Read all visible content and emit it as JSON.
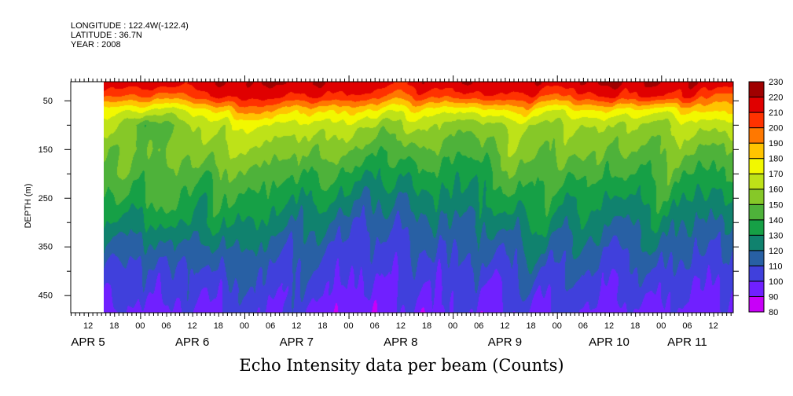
{
  "header": {
    "longitude": "LONGITUDE : 122.4W(-122.4)",
    "latitude": "LATITUDE : 36.7N",
    "year": "YEAR : 2008"
  },
  "chart_data": {
    "type": "heatmap",
    "title": "Echo Intensity data per beam (Counts)",
    "xlabel": "",
    "ylabel": "DEPTH (m)",
    "x_range_hours_from_apr5_00": [
      8,
      160.6
    ],
    "data_start_hours_from_apr5_00": 16,
    "y_range_m": [
      11.5,
      486
    ],
    "y_inverted": true,
    "y_ticks": [
      50,
      150,
      250,
      350,
      450
    ],
    "y_tick_labels": [
      "50",
      "150",
      "250",
      "350",
      "450"
    ],
    "x_tick_labels": [
      "12",
      "18",
      "00",
      "06",
      "12",
      "18",
      "00",
      "06",
      "12",
      "18",
      "00",
      "06",
      "12",
      "18",
      "00",
      "06",
      "12",
      "18",
      "00",
      "06",
      "12",
      "18",
      "00",
      "06",
      "12"
    ],
    "x_tick_hours": [
      12,
      18,
      24,
      30,
      36,
      42,
      48,
      54,
      60,
      66,
      72,
      78,
      84,
      90,
      96,
      102,
      108,
      114,
      120,
      126,
      132,
      138,
      144,
      150,
      156
    ],
    "date_labels": [
      "APR  5",
      "APR  6",
      "APR  7",
      "APR  8",
      "APR  9",
      "APR 10",
      "APR 11"
    ],
    "date_label_hours": [
      12,
      36,
      60,
      84,
      108,
      132,
      150
    ],
    "levels": [
      80,
      90,
      100,
      110,
      120,
      130,
      140,
      150,
      160,
      170,
      180,
      190,
      200,
      210,
      220,
      230
    ],
    "level_labels": [
      "80",
      "90",
      "100",
      "110",
      "120",
      "130",
      "140",
      "150",
      "160",
      "170",
      "180",
      "190",
      "200",
      "210",
      "220",
      "230"
    ],
    "colors": [
      "#c800f8",
      "#7020ff",
      "#4040dc",
      "#2860a4",
      "#10826e",
      "#16a046",
      "#4eb23a",
      "#86c828",
      "#bee218",
      "#f2f800",
      "#ffc400",
      "#ff7800",
      "#ff3200",
      "#e00000",
      "#a00000"
    ],
    "grid_depths_m": [
      15,
      40,
      70,
      100,
      150,
      200,
      250,
      300,
      350,
      400,
      450,
      490
    ],
    "grid_hours_from_apr5_00": [
      18,
      24,
      30,
      36,
      42,
      48,
      54,
      60,
      66,
      72,
      78,
      84,
      90,
      96,
      102,
      108,
      114,
      120,
      126,
      132,
      138,
      144,
      150,
      156
    ],
    "values": [
      [
        215,
        200,
        172,
        165,
        150,
        145,
        135,
        125,
        115,
        108,
        102,
        97
      ],
      [
        215,
        200,
        170,
        140,
        150,
        145,
        140,
        130,
        118,
        108,
        104,
        98
      ],
      [
        215,
        195,
        165,
        150,
        155,
        150,
        150,
        135,
        120,
        110,
        104,
        96
      ],
      [
        215,
        205,
        175,
        162,
        155,
        145,
        135,
        130,
        118,
        108,
        104,
        100
      ],
      [
        218,
        212,
        180,
        165,
        160,
        148,
        140,
        132,
        120,
        110,
        102,
        97
      ],
      [
        220,
        215,
        195,
        172,
        160,
        148,
        138,
        128,
        118,
        108,
        105,
        100
      ],
      [
        220,
        214,
        190,
        168,
        155,
        143,
        133,
        125,
        115,
        107,
        104,
        100
      ],
      [
        218,
        208,
        180,
        165,
        150,
        140,
        130,
        120,
        112,
        106,
        102,
        99
      ],
      [
        218,
        210,
        182,
        165,
        152,
        140,
        128,
        118,
        110,
        105,
        101,
        97
      ],
      [
        215,
        205,
        178,
        162,
        148,
        135,
        125,
        115,
        108,
        102,
        96,
        90
      ],
      [
        215,
        205,
        180,
        162,
        150,
        138,
        125,
        114,
        108,
        104,
        100,
        97
      ],
      [
        215,
        200,
        175,
        158,
        140,
        128,
        118,
        110,
        104,
        100,
        96,
        92
      ],
      [
        216,
        205,
        178,
        165,
        152,
        140,
        128,
        118,
        110,
        104,
        100,
        96
      ],
      [
        215,
        200,
        168,
        150,
        140,
        130,
        125,
        118,
        112,
        106,
        102,
        97
      ],
      [
        218,
        208,
        175,
        155,
        145,
        135,
        130,
        120,
        112,
        106,
        100,
        96
      ],
      [
        218,
        210,
        182,
        162,
        155,
        145,
        135,
        125,
        115,
        108,
        104,
        97
      ],
      [
        216,
        205,
        180,
        160,
        155,
        148,
        140,
        130,
        120,
        112,
        104,
        99
      ],
      [
        216,
        200,
        170,
        158,
        150,
        140,
        132,
        125,
        118,
        110,
        104,
        98
      ],
      [
        218,
        205,
        178,
        160,
        155,
        145,
        135,
        128,
        118,
        110,
        105,
        99
      ],
      [
        220,
        212,
        180,
        162,
        150,
        140,
        128,
        120,
        112,
        106,
        102,
        98
      ],
      [
        218,
        208,
        175,
        158,
        150,
        142,
        135,
        125,
        118,
        110,
        104,
        98
      ],
      [
        220,
        212,
        175,
        158,
        152,
        145,
        138,
        128,
        120,
        112,
        104,
        98
      ],
      [
        218,
        210,
        180,
        165,
        155,
        142,
        132,
        122,
        114,
        106,
        102,
        97
      ],
      [
        218,
        200,
        185,
        168,
        150,
        140,
        130,
        120,
        112,
        105,
        100,
        95
      ]
    ]
  }
}
